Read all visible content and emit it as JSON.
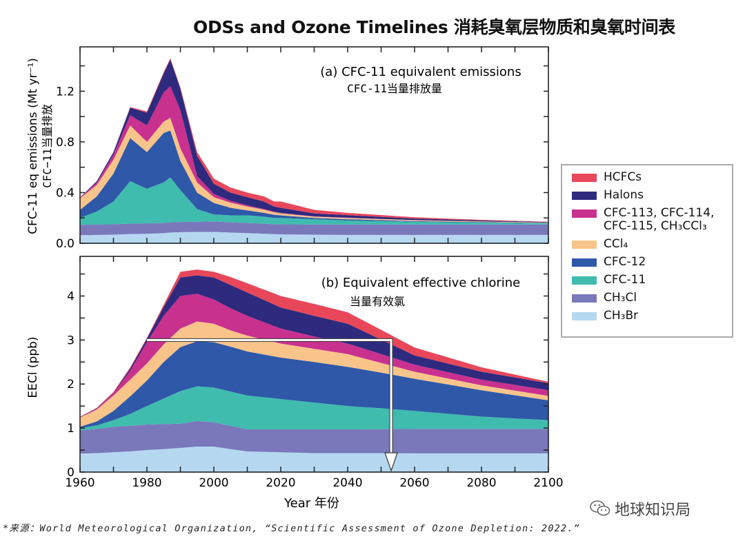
{
  "title": "ODSs and Ozone Timelines 消耗臭氧层物质和臭氧时间表",
  "footer": "*来源：World Meteorological Organization, “Scientific Assessment of Ozone Depletion: 2022.”",
  "watermark": "地球知识局",
  "legend": [
    {
      "key": "hcfcs",
      "label": "HCFCs",
      "color": "#e8475a"
    },
    {
      "key": "halons",
      "label": "Halons",
      "color": "#2e2a7e"
    },
    {
      "key": "cfc113",
      "label": "CFC-113, CFC-114, CFC-115, CH₃CCl₃",
      "color": "#c9318f"
    },
    {
      "key": "ccl4",
      "label": "CCl₄",
      "color": "#f8c48a"
    },
    {
      "key": "cfc12",
      "label": "CFC-12",
      "color": "#2f58a8"
    },
    {
      "key": "cfc11",
      "label": "CFC-11",
      "color": "#3fbcae"
    },
    {
      "key": "ch3cl",
      "label": "CH₃Cl",
      "color": "#7a78bb"
    },
    {
      "key": "ch3br",
      "label": "CH₃Br",
      "color": "#b5d8f0"
    }
  ],
  "chart_data": [
    {
      "type": "area",
      "stacked": true,
      "title": "(a) CFC-11 equivalent emissions",
      "subtitle": "CFC-11当量排放量",
      "ylabel": "CFC-11 eq emissions (Mt yr⁻¹)",
      "ylabel2": "CFC−11当量排放",
      "xlim": [
        1960,
        2100
      ],
      "ylim": [
        0,
        1.55
      ],
      "yticks": [
        "0.0",
        "0.4",
        "0.8",
        "1.2"
      ],
      "ytick_values": [
        0,
        0.4,
        0.8,
        1.2
      ],
      "x": [
        1960,
        1965,
        1970,
        1975,
        1980,
        1985,
        1987,
        1990,
        1995,
        2000,
        2005,
        2010,
        2015,
        2018,
        2020,
        2030,
        2040,
        2060,
        2080,
        2100
      ],
      "series": [
        {
          "name": "CH₃Br",
          "key": "ch3br",
          "values": [
            0.064,
            0.066,
            0.068,
            0.073,
            0.075,
            0.08,
            0.085,
            0.088,
            0.09,
            0.09,
            0.085,
            0.08,
            0.075,
            0.072,
            0.07,
            0.068,
            0.066,
            0.066,
            0.066,
            0.066
          ]
        },
        {
          "name": "CH₃Cl",
          "key": "ch3cl",
          "values": [
            0.081,
            0.082,
            0.082,
            0.082,
            0.083,
            0.08,
            0.08,
            0.08,
            0.08,
            0.083,
            0.08,
            0.08,
            0.08,
            0.078,
            0.08,
            0.08,
            0.082,
            0.082,
            0.082,
            0.082
          ]
        },
        {
          "name": "CFC-11",
          "key": "cfc11",
          "values": [
            0.055,
            0.102,
            0.18,
            0.335,
            0.272,
            0.32,
            0.355,
            0.252,
            0.1,
            0.054,
            0.055,
            0.06,
            0.055,
            0.05,
            0.05,
            0.042,
            0.032,
            0.022,
            0.015,
            0.01
          ]
        },
        {
          "name": "CFC-12",
          "key": "cfc12",
          "values": [
            0.064,
            0.12,
            0.22,
            0.34,
            0.29,
            0.39,
            0.37,
            0.23,
            0.13,
            0.091,
            0.06,
            0.04,
            0.03,
            0.025,
            0.02,
            0.01,
            0.01,
            0.005,
            0.004,
            0.002
          ]
        },
        {
          "name": "CCl₄",
          "key": "ccl4",
          "values": [
            0.091,
            0.09,
            0.11,
            0.1,
            0.08,
            0.09,
            0.1,
            0.1,
            0.08,
            0.046,
            0.04,
            0.03,
            0.025,
            0.02,
            0.016,
            0.01,
            0.01,
            0.007,
            0.005,
            0.003
          ]
        },
        {
          "name": "CFC-113, CFC-114, CFC-115, CH₃CCl₃",
          "key": "cfc113",
          "values": [
            0.005,
            0.02,
            0.04,
            0.08,
            0.13,
            0.23,
            0.25,
            0.3,
            0.05,
            0.026,
            0.015,
            0.01,
            0.005,
            0.005,
            0.004,
            0.002,
            0.002,
            0.001,
            0.001,
            0.001
          ]
        },
        {
          "name": "Halons",
          "key": "halons",
          "values": [
            0.002,
            0.01,
            0.02,
            0.06,
            0.1,
            0.15,
            0.21,
            0.17,
            0.16,
            0.08,
            0.065,
            0.064,
            0.06,
            0.04,
            0.04,
            0.024,
            0.02,
            0.012,
            0.007,
            0.004
          ]
        },
        {
          "name": "HCFCs",
          "key": "hcfcs",
          "values": [
            0.001,
            0.0,
            0.0,
            0.005,
            0.01,
            0.01,
            0.01,
            0.01,
            0.03,
            0.04,
            0.04,
            0.036,
            0.04,
            0.04,
            0.05,
            0.028,
            0.018,
            0.01,
            0.005,
            0.002
          ]
        }
      ]
    },
    {
      "type": "area",
      "stacked": true,
      "title": "(b) Equivalent effective chlorine",
      "subtitle": "当量有效氯",
      "ylabel": "EECl (ppb)",
      "xlabel": "Year 年份",
      "xlim": [
        1960,
        2100
      ],
      "ylim": [
        0,
        4.9
      ],
      "xticks": [
        "1960",
        "1980",
        "2000",
        "2020",
        "2040",
        "2060",
        "2080",
        "2100"
      ],
      "xtick_values": [
        1960,
        1980,
        2000,
        2020,
        2040,
        2060,
        2080,
        2100
      ],
      "yticks": [
        "0",
        "1",
        "2",
        "3",
        "4"
      ],
      "ytick_values": [
        0,
        1,
        2,
        3,
        4
      ],
      "annotation_arrow": {
        "from_year": 1980,
        "to_year": 2053,
        "level": 3
      },
      "x": [
        1960,
        1965,
        1970,
        1975,
        1980,
        1985,
        1990,
        1995,
        2000,
        2005,
        2010,
        2020,
        2030,
        2040,
        2050,
        2060,
        2080,
        2100
      ],
      "series": [
        {
          "name": "CH₃Br",
          "key": "ch3br",
          "values": [
            0.42,
            0.43,
            0.45,
            0.47,
            0.5,
            0.52,
            0.55,
            0.58,
            0.58,
            0.52,
            0.47,
            0.45,
            0.43,
            0.43,
            0.43,
            0.425,
            0.425,
            0.425
          ]
        },
        {
          "name": "CH₃Cl",
          "key": "ch3cl",
          "values": [
            0.53,
            0.55,
            0.58,
            0.58,
            0.58,
            0.57,
            0.55,
            0.58,
            0.55,
            0.53,
            0.5,
            0.52,
            0.54,
            0.54,
            0.545,
            0.555,
            0.555,
            0.555
          ]
        },
        {
          "name": "CFC-11",
          "key": "cfc11",
          "values": [
            0.05,
            0.08,
            0.15,
            0.27,
            0.42,
            0.58,
            0.74,
            0.79,
            0.79,
            0.78,
            0.77,
            0.69,
            0.61,
            0.53,
            0.475,
            0.41,
            0.28,
            0.2
          ]
        },
        {
          "name": "CFC-12",
          "key": "cfc12",
          "values": [
            0.03,
            0.09,
            0.21,
            0.4,
            0.58,
            0.83,
            1.0,
            1.02,
            1.03,
            1.02,
            1.0,
            0.94,
            0.92,
            0.89,
            0.81,
            0.73,
            0.6,
            0.45
          ]
        },
        {
          "name": "CCl₄",
          "key": "ccl4",
          "values": [
            0.21,
            0.27,
            0.35,
            0.38,
            0.39,
            0.4,
            0.42,
            0.45,
            0.42,
            0.37,
            0.36,
            0.32,
            0.3,
            0.29,
            0.22,
            0.16,
            0.11,
            0.1
          ]
        },
        {
          "name": "CFC-113, CFC-114, CFC-115, CH₃CCl₃",
          "key": "cfc113",
          "values": [
            0.01,
            0.02,
            0.05,
            0.2,
            0.48,
            0.65,
            0.74,
            0.63,
            0.55,
            0.5,
            0.45,
            0.34,
            0.28,
            0.24,
            0.2,
            0.16,
            0.13,
            0.13
          ]
        },
        {
          "name": "Halons",
          "key": "halons",
          "values": [
            0.005,
            0.01,
            0.01,
            0.05,
            0.08,
            0.2,
            0.42,
            0.42,
            0.5,
            0.53,
            0.53,
            0.48,
            0.47,
            0.45,
            0.33,
            0.21,
            0.18,
            0.16
          ]
        },
        {
          "name": "HCFCs",
          "key": "hcfcs",
          "values": [
            0.005,
            0.01,
            0.02,
            0.03,
            0.02,
            0.05,
            0.13,
            0.13,
            0.13,
            0.18,
            0.21,
            0.26,
            0.27,
            0.26,
            0.22,
            0.18,
            0.1,
            0.03
          ]
        }
      ]
    }
  ]
}
